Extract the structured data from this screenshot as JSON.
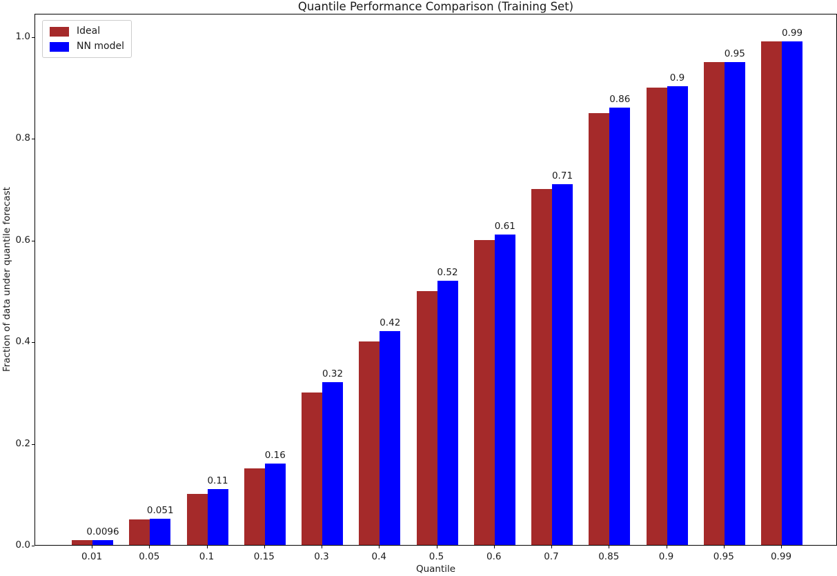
{
  "chart_data": {
    "type": "bar",
    "title": "Quantile Performance Comparison (Training Set)",
    "xlabel": "Quantile",
    "ylabel": "Fraction of data under quantile forecast",
    "categories": [
      "0.01",
      "0.05",
      "0.1",
      "0.15",
      "0.3",
      "0.4",
      "0.5",
      "0.6",
      "0.7",
      "0.85",
      "0.9",
      "0.95",
      "0.99"
    ],
    "series": [
      {
        "name": "Ideal",
        "color": "#a52a2a",
        "values": [
          0.01,
          0.05,
          0.1,
          0.15,
          0.3,
          0.4,
          0.5,
          0.6,
          0.7,
          0.85,
          0.9,
          0.95,
          0.99
        ]
      },
      {
        "name": "NN model",
        "color": "#0000ff",
        "values": [
          0.0096,
          0.051,
          0.11,
          0.16,
          0.32,
          0.42,
          0.52,
          0.61,
          0.71,
          0.86,
          0.903,
          0.95,
          0.99
        ],
        "bar_labels": [
          "0.0096",
          "0.051",
          "0.11",
          "0.16",
          "0.32",
          "0.42",
          "0.52",
          "0.61",
          "0.71",
          "0.86",
          "0.9",
          "0.95",
          "0.99"
        ]
      }
    ],
    "y_ticks": [
      "0.0",
      "0.2",
      "0.4",
      "0.6",
      "0.8",
      "1.0"
    ],
    "ylim": [
      0,
      1.046
    ],
    "legend_position": "upper left",
    "grid": false,
    "axis_color": "#000000",
    "text_color": "#1a1a1a",
    "background_color": "#ffffff"
  }
}
